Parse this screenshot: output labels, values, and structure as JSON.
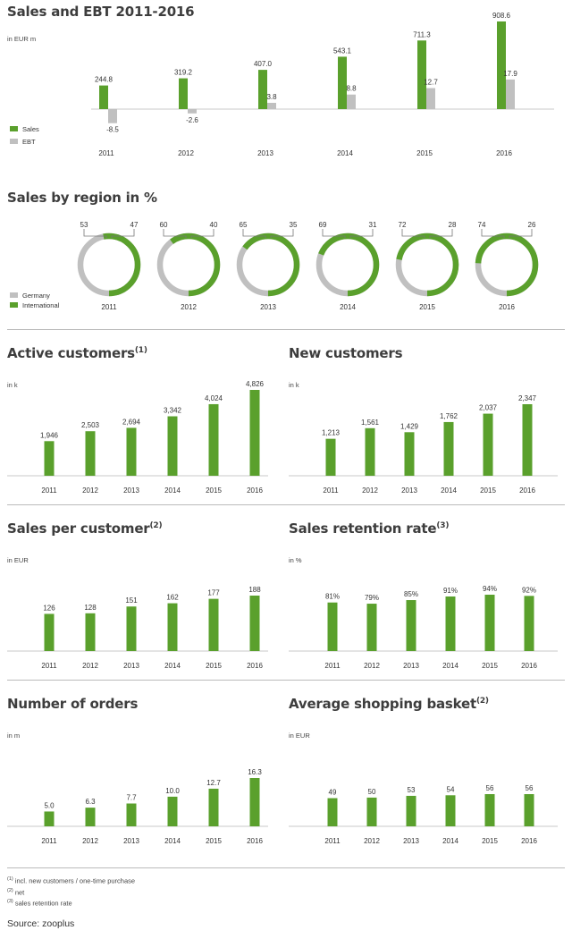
{
  "colors": {
    "green": "#5aa02c",
    "gray": "#c0c0c0",
    "axis": "#c8c8c8",
    "text": "#333333"
  },
  "years": [
    "2011",
    "2012",
    "2013",
    "2014",
    "2015",
    "2016"
  ],
  "panels": {
    "sales_ebt": {
      "title": "Sales and EBT 2011-2016",
      "unit": "in EUR m",
      "legend": {
        "sales": "Sales",
        "ebt": "EBT"
      }
    },
    "region": {
      "title": "Sales by region in %",
      "legend": {
        "germany": "Germany",
        "international": "International"
      }
    },
    "active": {
      "title": "Active customers",
      "note": "(1)",
      "unit": "in k"
    },
    "new": {
      "title": "New customers",
      "note": "",
      "unit": "in k"
    },
    "spc": {
      "title": "Sales per customer",
      "note": "(2)",
      "unit": "in EUR"
    },
    "retention": {
      "title": "Sales retention rate",
      "note": "(3)",
      "unit": "in %"
    },
    "orders": {
      "title": "Number of orders",
      "note": "",
      "unit": "in m"
    },
    "basket": {
      "title": "Average shopping basket",
      "note": "(2)",
      "unit": "in EUR"
    }
  },
  "chart_data": [
    {
      "id": "sales_ebt",
      "type": "bar",
      "title": "Sales and EBT 2011-2016",
      "ylabel": "in EUR m",
      "categories": [
        "2011",
        "2012",
        "2013",
        "2014",
        "2015",
        "2016"
      ],
      "series": [
        {
          "name": "Sales",
          "values": [
            244.8,
            319.2,
            407.0,
            543.1,
            711.3,
            908.6
          ],
          "labels": [
            "244.8",
            "319.2",
            "407.0",
            "543.1",
            "711.3",
            "908.6"
          ]
        },
        {
          "name": "EBT",
          "values": [
            -8.5,
            -2.6,
            3.8,
            8.8,
            12.7,
            17.9
          ],
          "labels": [
            "-8.5",
            "-2.6",
            "3.8",
            "8.8",
            "12.7",
            "17.9"
          ]
        }
      ],
      "legend": "bottom-left"
    },
    {
      "id": "region",
      "type": "pie",
      "title": "Sales by region in %",
      "categories": [
        "2011",
        "2012",
        "2013",
        "2014",
        "2015",
        "2016"
      ],
      "series": [
        {
          "name": "International",
          "values": [
            53,
            60,
            65,
            69,
            72,
            74
          ]
        },
        {
          "name": "Germany",
          "values": [
            47,
            40,
            35,
            31,
            28,
            26
          ]
        }
      ],
      "legend": "bottom-left"
    },
    {
      "id": "active",
      "type": "bar",
      "title": "Active customers",
      "ylabel": "in k",
      "categories": [
        "2011",
        "2012",
        "2013",
        "2014",
        "2015",
        "2016"
      ],
      "values": [
        1946,
        2503,
        2694,
        3342,
        4024,
        4826
      ],
      "labels": [
        "1,946",
        "2,503",
        "2,694",
        "3,342",
        "4,024",
        "4,826"
      ]
    },
    {
      "id": "new",
      "type": "bar",
      "title": "New customers",
      "ylabel": "in k",
      "categories": [
        "2011",
        "2012",
        "2013",
        "2014",
        "2015",
        "2016"
      ],
      "values": [
        1213,
        1561,
        1429,
        1762,
        2037,
        2347
      ],
      "labels": [
        "1,213",
        "1,561",
        "1,429",
        "1,762",
        "2,037",
        "2,347"
      ]
    },
    {
      "id": "spc",
      "type": "bar",
      "title": "Sales per customer",
      "ylabel": "in EUR",
      "categories": [
        "2011",
        "2012",
        "2013",
        "2014",
        "2015",
        "2016"
      ],
      "values": [
        126,
        128,
        151,
        162,
        177,
        188
      ],
      "labels": [
        "126",
        "128",
        "151",
        "162",
        "177",
        "188"
      ]
    },
    {
      "id": "retention",
      "type": "bar",
      "title": "Sales retention rate",
      "ylabel": "in %",
      "categories": [
        "2011",
        "2012",
        "2013",
        "2014",
        "2015",
        "2016"
      ],
      "values": [
        81,
        79,
        85,
        91,
        94,
        92
      ],
      "labels": [
        "81%",
        "79%",
        "85%",
        "91%",
        "94%",
        "92%"
      ]
    },
    {
      "id": "orders",
      "type": "bar",
      "title": "Number of orders",
      "ylabel": "in m",
      "categories": [
        "2011",
        "2012",
        "2013",
        "2014",
        "2015",
        "2016"
      ],
      "values": [
        5.0,
        6.3,
        7.7,
        10.0,
        12.7,
        16.3
      ],
      "labels": [
        "5.0",
        "6.3",
        "7.7",
        "10.0",
        "12.7",
        "16.3"
      ]
    },
    {
      "id": "basket",
      "type": "bar",
      "title": "Average shopping basket",
      "ylabel": "in EUR",
      "categories": [
        "2011",
        "2012",
        "2013",
        "2014",
        "2015",
        "2016"
      ],
      "values": [
        49,
        50,
        53,
        54,
        56,
        56
      ],
      "labels": [
        "49",
        "50",
        "53",
        "54",
        "56",
        "56"
      ]
    }
  ],
  "footnotes": [
    {
      "marker": "(1)",
      "text": "incl. new customers / one-time purchase"
    },
    {
      "marker": "(2)",
      "text": "net"
    },
    {
      "marker": "(3)",
      "text": "sales retention rate"
    }
  ],
  "source": "Source: zooplus"
}
